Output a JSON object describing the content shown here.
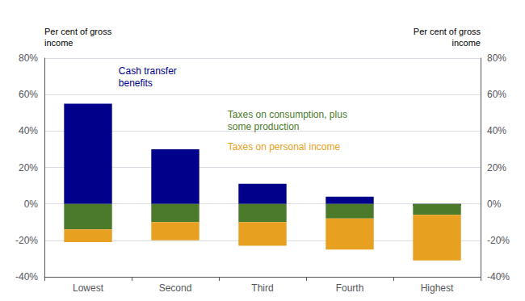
{
  "chart_data": {
    "type": "bar",
    "categories": [
      "Lowest",
      "Second",
      "Third",
      "Fourth",
      "Highest"
    ],
    "series": [
      {
        "name": "Cash transfer\nbenefits",
        "color": "#00008B",
        "values": [
          55,
          30,
          11,
          4,
          -1
        ]
      },
      {
        "name": "Taxes on consumption, plus\nsome production",
        "color": "#4A7A2A",
        "values": [
          -14,
          -10,
          -10,
          -8,
          -6
        ],
        "stacked": true
      },
      {
        "name": "Taxes on personal income",
        "color": "#E8A020",
        "values": [
          -7,
          -10,
          -13,
          -17,
          -25
        ],
        "stacked": true
      }
    ],
    "ylabel": "Per cent of gross\nincome",
    "y2label": "Per cent of gross\nincome",
    "ylim": [
      -40,
      80
    ],
    "yticks": [
      {
        "value": -40,
        "label": "-40%"
      },
      {
        "value": -20,
        "label": "-20%"
      },
      {
        "value": 0,
        "label": "0%"
      },
      {
        "value": 20,
        "label": "20%"
      },
      {
        "value": 40,
        "label": "40%"
      },
      {
        "value": 60,
        "label": "60%"
      },
      {
        "value": 80,
        "label": "80%"
      }
    ],
    "y2lim": [
      -40,
      80
    ],
    "y2ticks": [
      {
        "value": -40,
        "label": "-40%"
      },
      {
        "value": -20,
        "label": "-20%"
      },
      {
        "value": 0,
        "label": "0%"
      },
      {
        "value": 20,
        "label": "20%"
      },
      {
        "value": 40,
        "label": "40%"
      },
      {
        "value": 60,
        "label": "60%"
      },
      {
        "value": 80,
        "label": "80%"
      }
    ],
    "grid": true
  }
}
